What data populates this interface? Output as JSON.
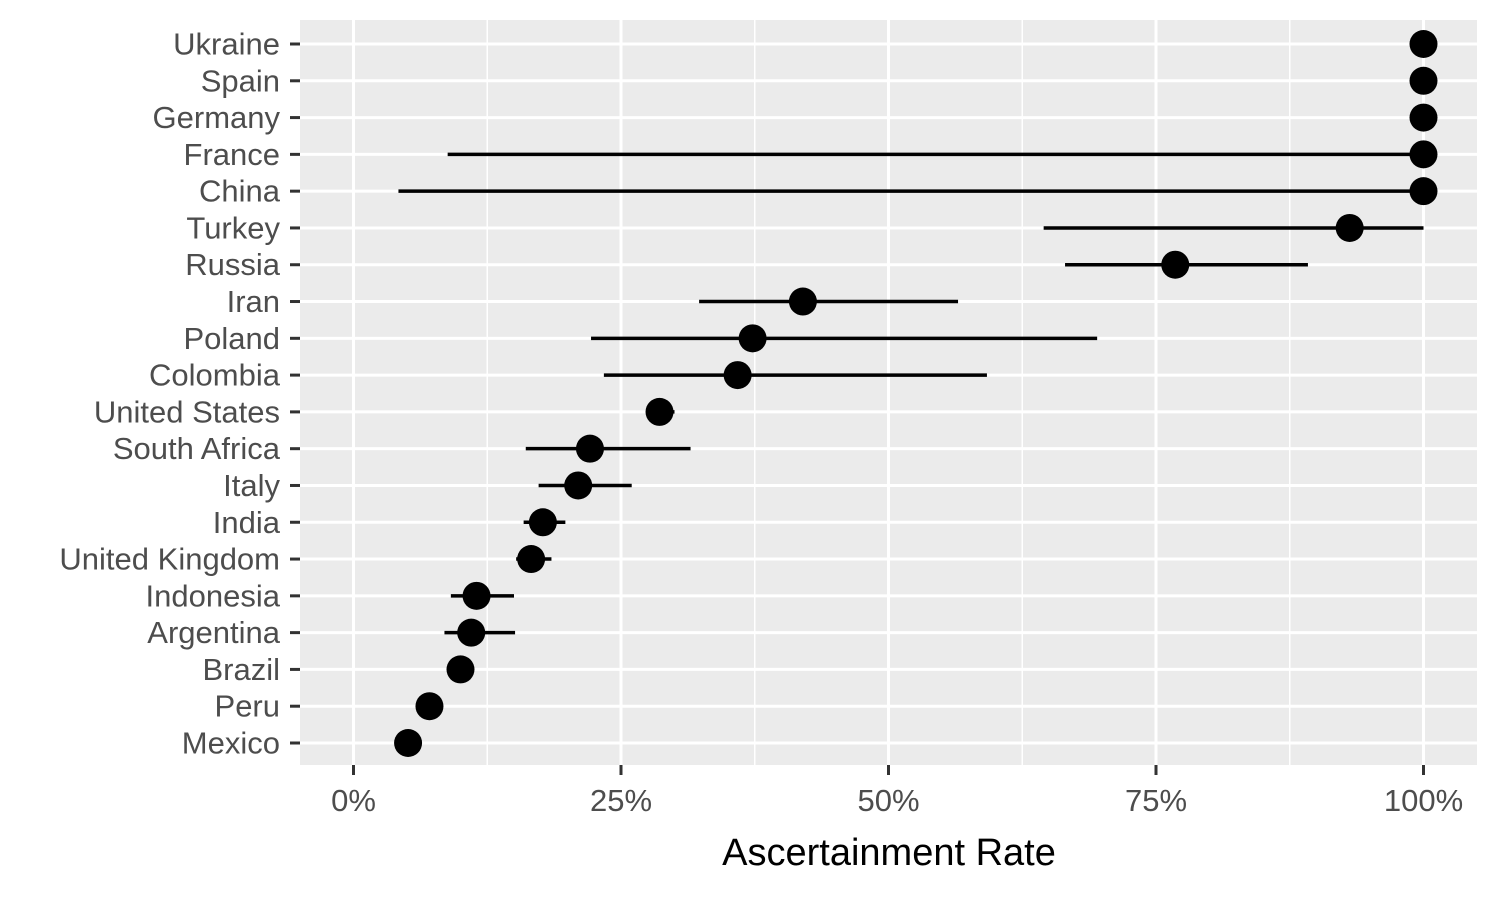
{
  "chart_data": {
    "type": "scatter",
    "title": "",
    "xlabel": "Ascertainment Rate",
    "ylabel": "",
    "xlim": [
      -0.05,
      1.05
    ],
    "x_ticks": [
      0,
      0.25,
      0.5,
      0.75,
      1.0
    ],
    "x_tick_labels": [
      "0%",
      "25%",
      "50%",
      "75%",
      "100%"
    ],
    "x_minor": [
      0.125,
      0.375,
      0.625,
      0.875
    ],
    "grid": true,
    "point_color": "#000000",
    "panel_color": "#ebebeb",
    "categories": [
      "Ukraine",
      "Spain",
      "Germany",
      "France",
      "China",
      "Turkey",
      "Russia",
      "Iran",
      "Poland",
      "Colombia",
      "United States",
      "South Africa",
      "Italy",
      "India",
      "United Kingdom",
      "Indonesia",
      "Argentina",
      "Brazil",
      "Peru",
      "Mexico"
    ],
    "values": [
      1.0,
      1.0,
      1.0,
      1.0,
      1.0,
      0.931,
      0.768,
      0.42,
      0.373,
      0.359,
      0.286,
      0.221,
      0.21,
      0.177,
      0.166,
      0.115,
      0.11,
      0.1,
      0.071,
      0.051
    ],
    "lower": [
      1.0,
      1.0,
      1.0,
      0.088,
      0.042,
      0.645,
      0.665,
      0.323,
      0.222,
      0.234,
      0.274,
      0.161,
      0.173,
      0.159,
      0.152,
      0.091,
      0.085,
      0.097,
      0.069,
      0.049
    ],
    "upper": [
      1.0,
      1.0,
      1.0,
      1.0,
      1.0,
      1.0,
      0.892,
      0.565,
      0.695,
      0.592,
      0.3,
      0.315,
      0.26,
      0.198,
      0.185,
      0.15,
      0.151,
      0.103,
      0.073,
      0.053
    ]
  }
}
